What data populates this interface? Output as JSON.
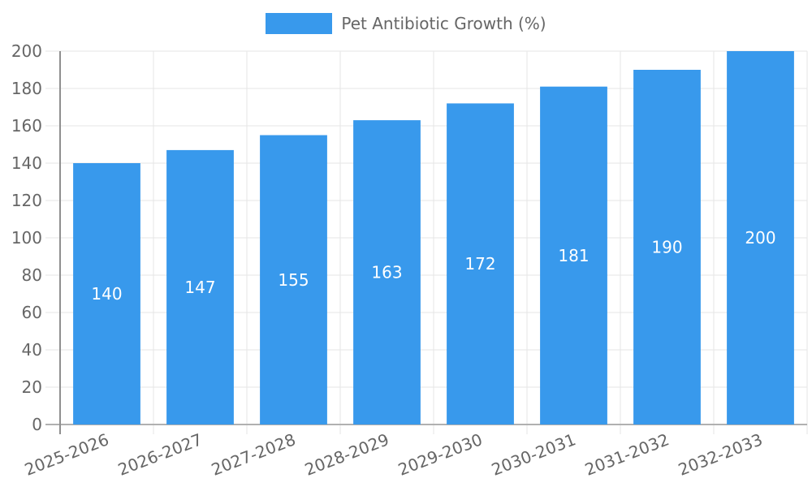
{
  "legend": {
    "label": "Pet Antibiotic Growth (%)",
    "position": "top"
  },
  "chart_data": {
    "type": "bar",
    "title": "",
    "categories": [
      "2025-2026",
      "2026-2027",
      "2027-2028",
      "2028-2029",
      "2029-2030",
      "2030-2031",
      "2031-2032",
      "2032-2033"
    ],
    "series": [
      {
        "name": "Pet Antibiotic Growth (%)",
        "values": [
          140,
          147,
          155,
          163,
          172,
          181,
          190,
          200
        ]
      }
    ],
    "bar_value_labels": [
      "140",
      "147",
      "155",
      "163",
      "172",
      "181",
      "190",
      "200"
    ],
    "xlabel": "",
    "ylabel": "",
    "ylim": [
      0,
      200
    ],
    "yticks": [
      0,
      20,
      40,
      60,
      80,
      100,
      120,
      140,
      160,
      180,
      200
    ],
    "grid": true,
    "legend_position": "top",
    "x_label_rotation_deg": -21,
    "colors": {
      "bar": "#3899ec",
      "bar_label_text": "#ffffff",
      "tick_text": "#666666",
      "gridline": "#e6e6e6",
      "y_axis_line": "#8f8f8f",
      "x_axis_line": "#b0b0b0",
      "background": "#ffffff"
    }
  }
}
